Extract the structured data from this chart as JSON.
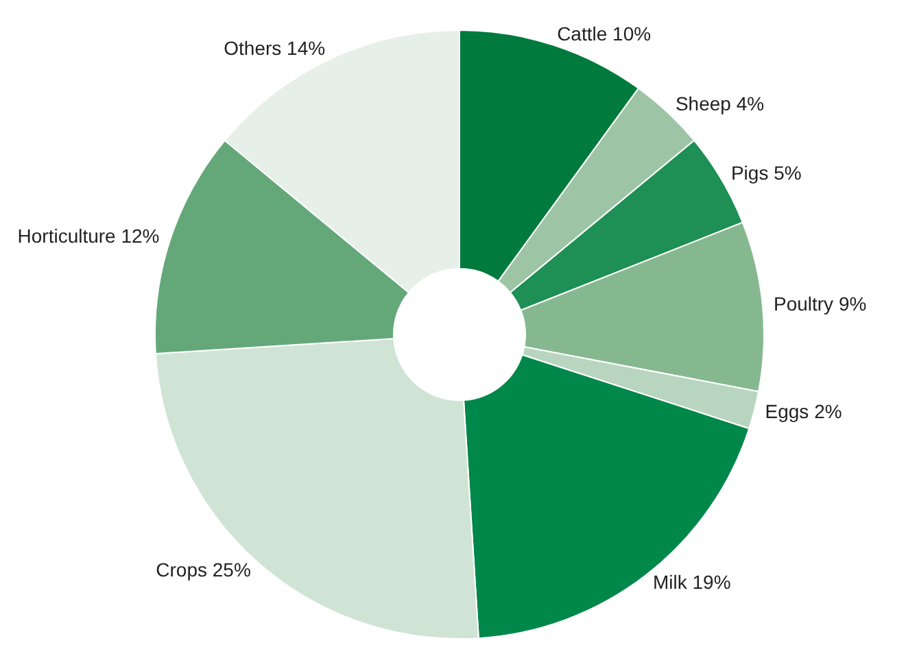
{
  "chart_data": {
    "type": "donut",
    "categories": [
      "Cattle",
      "Sheep",
      "Pigs",
      "Poultry",
      "Eggs",
      "Milk",
      "Crops",
      "Horticulture",
      "Others"
    ],
    "values": [
      10,
      4,
      5,
      9,
      2,
      19,
      25,
      12,
      14
    ],
    "value_labels": [
      "10%",
      "4%",
      "5%",
      "9%",
      "2%",
      "19%",
      "25%",
      "12%",
      "14%"
    ],
    "colors": [
      "#007a3d",
      "#9dc5a5",
      "#1e8f55",
      "#86b890",
      "#b8d5c0",
      "#00874a",
      "#d0e4d6",
      "#64a87a",
      "#e6f0e8"
    ]
  }
}
